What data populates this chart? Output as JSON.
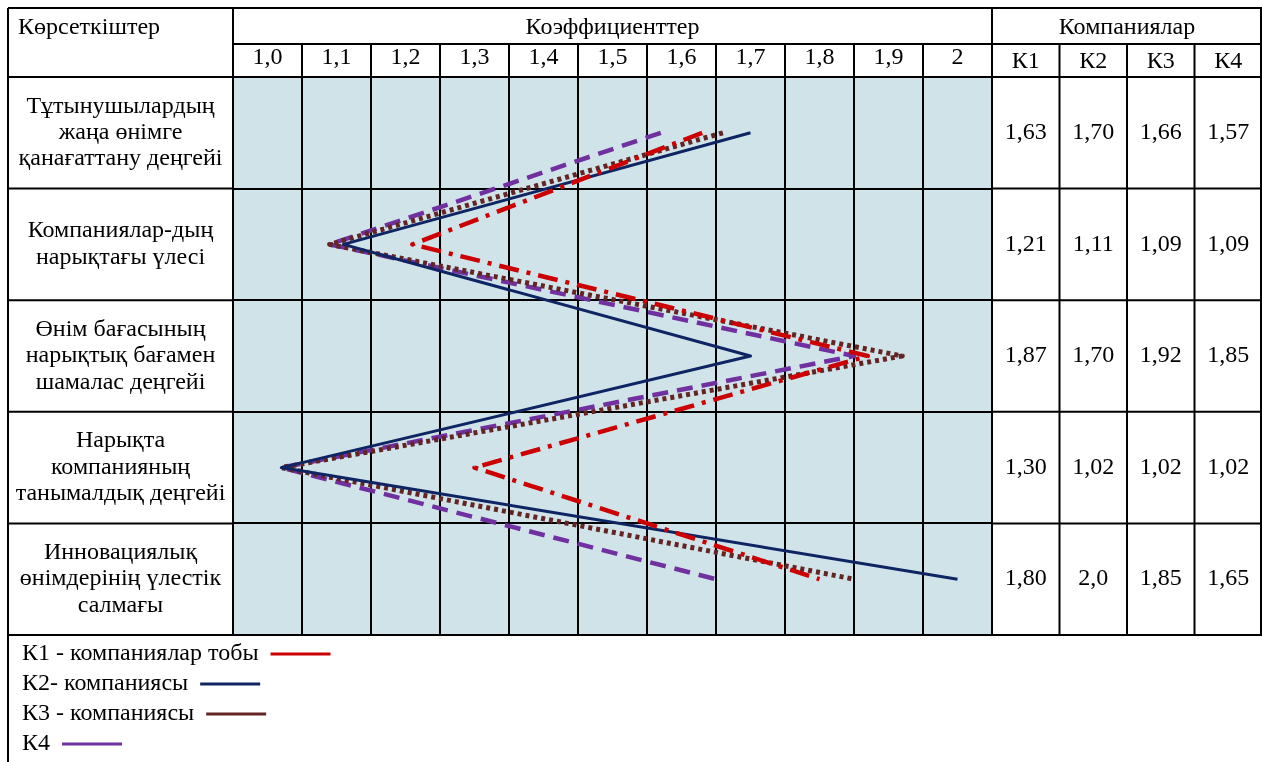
{
  "chart_data": {
    "type": "line",
    "orientation": "horizontal",
    "xlabel": "Коэффициенттер",
    "ylabel": "Көрсеткіштер",
    "categories": [
      "Тұтынушылардың жаңа өнімге қанағаттану деңгейі",
      "Компаниялар-дың нарықтағы үлесі",
      "Өнім бағасының нарықтық бағамен шамалас деңгейі",
      "Нарықта компанияның танымалдық деңгейі",
      "Инновациялық өнімдерінің үлестік салмағы"
    ],
    "series": [
      {
        "name": "К1 - компаниялар тобы",
        "color": "#cc0000",
        "line_style": "dashdot",
        "values": [
          1.63,
          1.21,
          1.87,
          1.3,
          1.8
        ],
        "value_labels": [
          "1,63",
          "1,21",
          "1,87",
          "1,30",
          "1,80"
        ]
      },
      {
        "name": "К2- компаниясы",
        "color": "#0f2563",
        "line_style": "solid",
        "values": [
          1.7,
          1.11,
          1.7,
          1.02,
          2.0
        ],
        "value_labels": [
          "1,70",
          "1,11",
          "1,70",
          "1,02",
          "2,0"
        ]
      },
      {
        "name": "К3 - компаниясы",
        "color": "#632523",
        "line_style": "dotted",
        "values": [
          1.66,
          1.09,
          1.92,
          1.02,
          1.85
        ],
        "value_labels": [
          "1,66",
          "1,09",
          "1,92",
          "1,02",
          "1,85"
        ]
      },
      {
        "name": "К4",
        "color": "#7030a0",
        "line_style": "dashed",
        "values": [
          1.57,
          1.09,
          1.85,
          1.02,
          1.65
        ],
        "value_labels": [
          "1,57",
          "1,09",
          "1,85",
          "1,02",
          "1,65"
        ]
      }
    ],
    "xlim": [
      0.95,
      2.05
    ],
    "xticks": [
      {
        "value": 0.95,
        "label": null
      },
      {
        "value": 1.0,
        "label": "1,0"
      },
      {
        "value": 1.05,
        "label": null
      },
      {
        "value": 1.1,
        "label": "1,1"
      },
      {
        "value": 1.15,
        "label": null
      },
      {
        "value": 1.2,
        "label": "1,2"
      },
      {
        "value": 1.25,
        "label": null
      },
      {
        "value": 1.3,
        "label": "1,3"
      },
      {
        "value": 1.35,
        "label": null
      },
      {
        "value": 1.4,
        "label": "1,4"
      },
      {
        "value": 1.45,
        "label": null
      },
      {
        "value": 1.5,
        "label": "1,5"
      },
      {
        "value": 1.55,
        "label": null
      },
      {
        "value": 1.6,
        "label": "1,6"
      },
      {
        "value": 1.65,
        "label": null
      },
      {
        "value": 1.7,
        "label": "1,7"
      },
      {
        "value": 1.75,
        "label": null
      },
      {
        "value": 1.8,
        "label": "1,8"
      },
      {
        "value": 1.85,
        "label": null
      },
      {
        "value": 1.9,
        "label": "1,9"
      },
      {
        "value": 1.95,
        "label": null
      },
      2,
      {
        "value": 2.05,
        "label": null
      }
    ],
    "grid": true,
    "legend": "bottom left",
    "annotations": [
      "Компаниялар",
      "К1",
      "К2",
      "К3",
      "К4"
    ]
  }
}
